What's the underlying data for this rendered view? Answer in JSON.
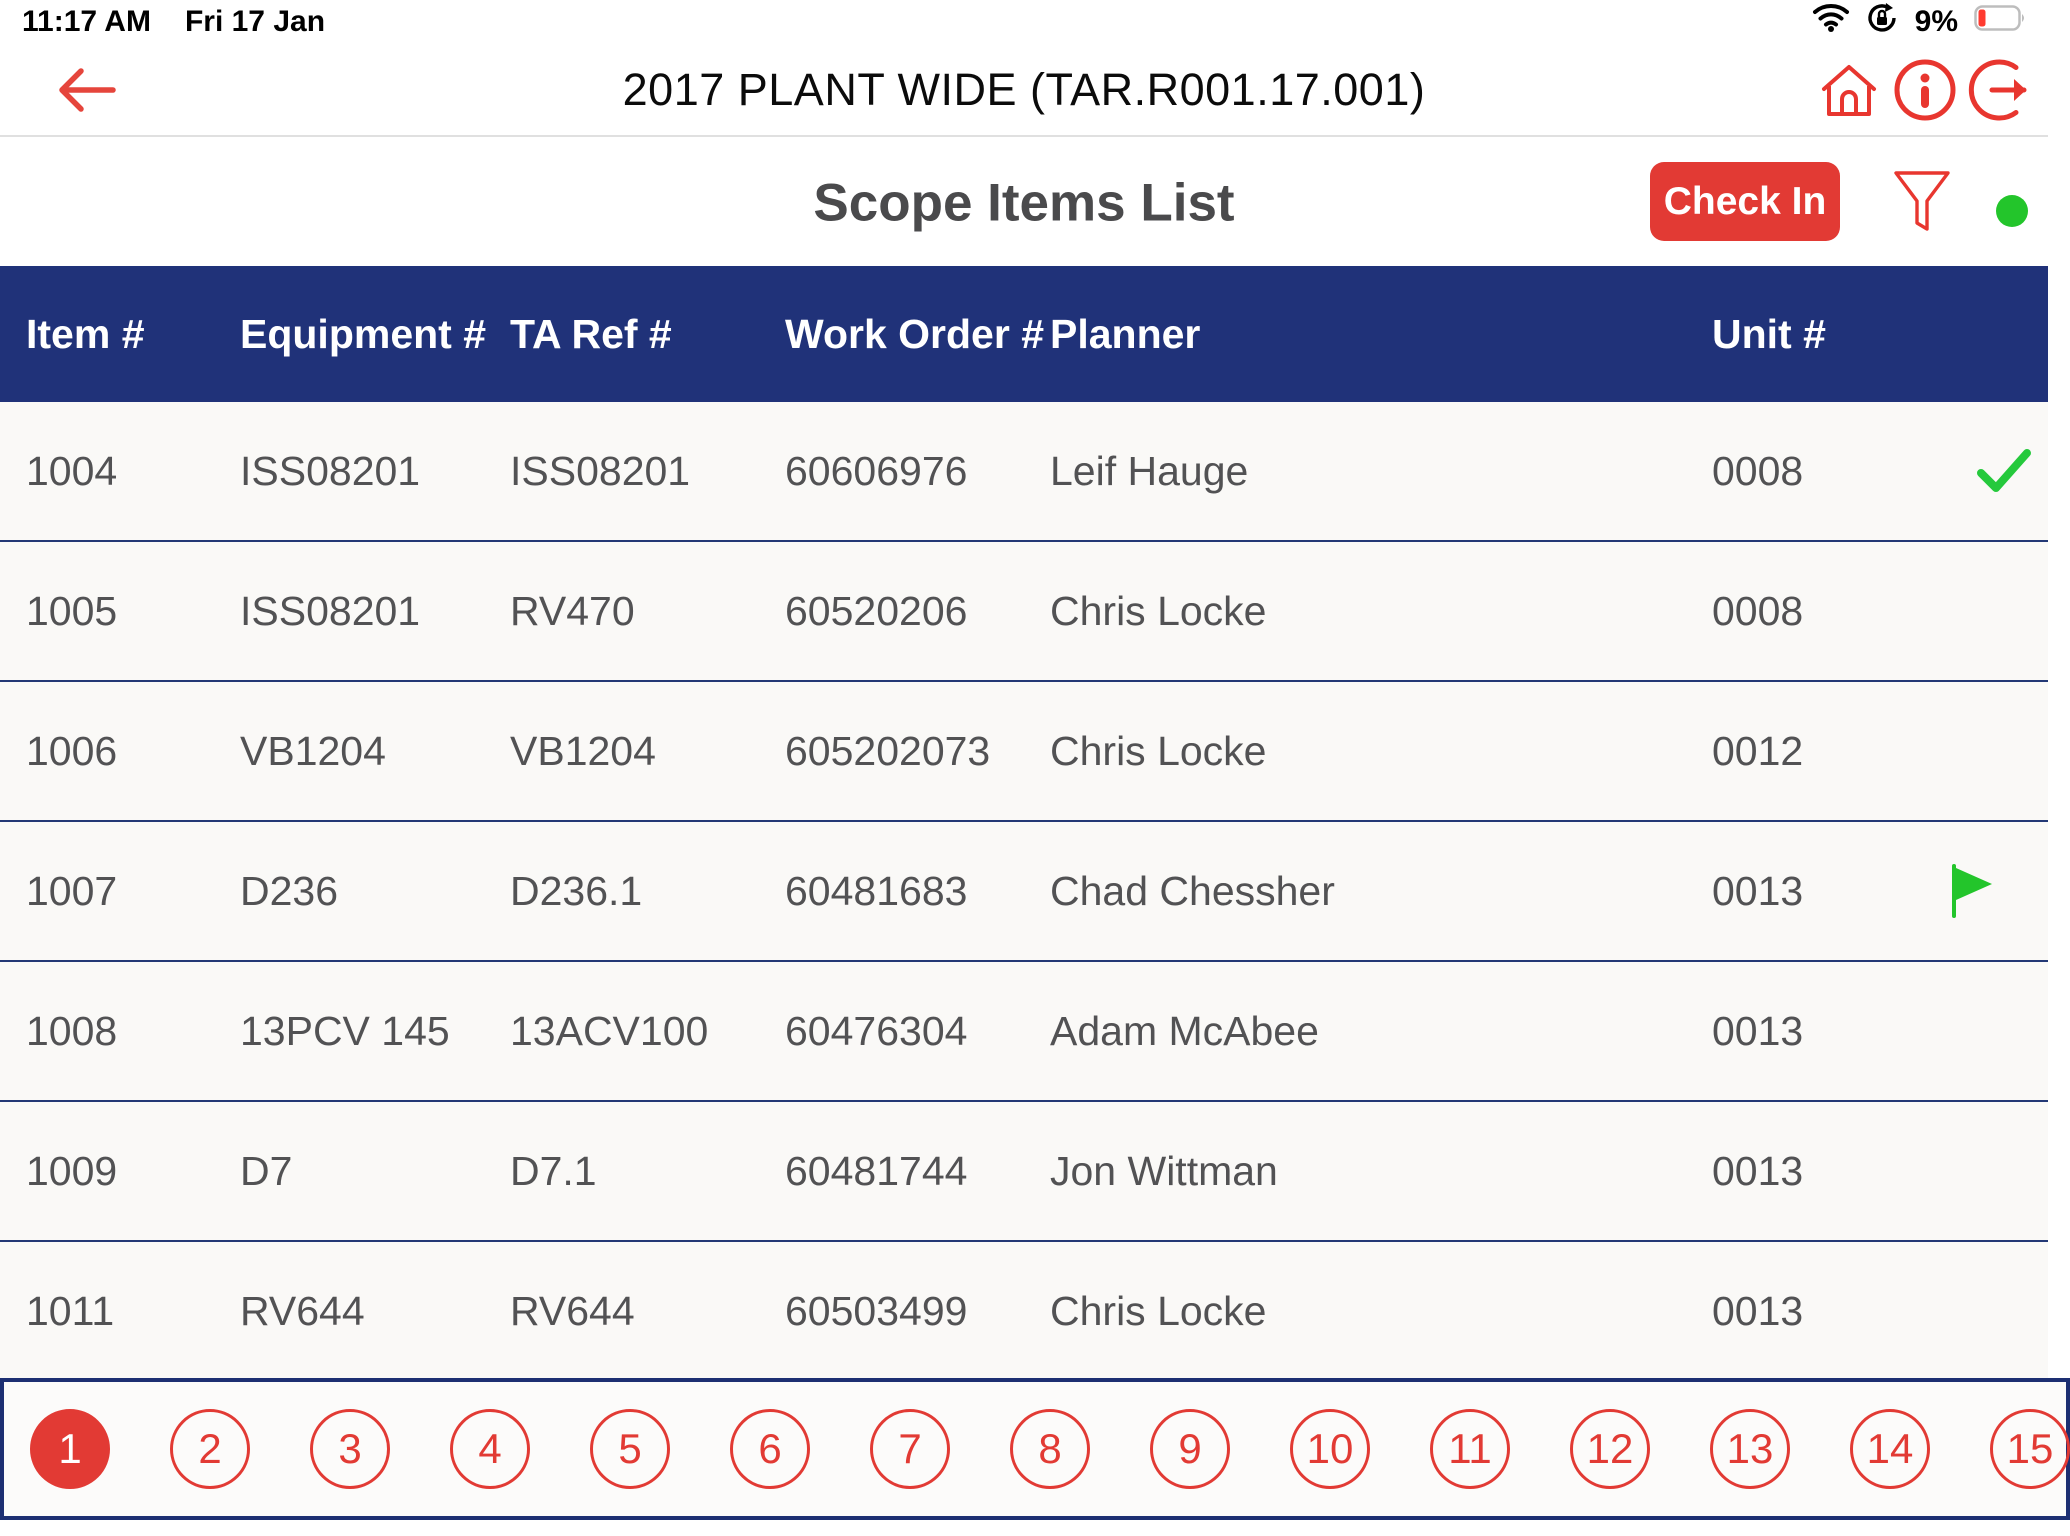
{
  "status_bar": {
    "time": "11:17 AM",
    "date": "Fri 17 Jan",
    "battery_percent": "9%"
  },
  "nav_bar": {
    "title": "2017 PLANT WIDE (TAR.R001.17.001)"
  },
  "toolbar": {
    "title": "Scope Items List",
    "check_in_label": "Check In"
  },
  "table": {
    "columns": [
      "Item #",
      "Equipment #",
      "TA Ref #",
      "Work Order #",
      "Planner",
      "Unit #"
    ],
    "rows": [
      {
        "item": "1004",
        "equipment": "ISS08201",
        "ta_ref": "ISS08201",
        "work_order": "60606976",
        "planner": "Leif Hauge",
        "unit": "0008",
        "status": "checked-in"
      },
      {
        "item": "1005",
        "equipment": "ISS08201",
        "ta_ref": "RV470",
        "work_order": "60520206",
        "planner": "Chris Locke",
        "unit": "0008",
        "status": ""
      },
      {
        "item": "1006",
        "equipment": "VB1204",
        "ta_ref": "VB1204",
        "work_order": "605202073",
        "planner": "Chris Locke",
        "unit": "0012",
        "status": ""
      },
      {
        "item": "1007",
        "equipment": "D236",
        "ta_ref": "D236.1",
        "work_order": "60481683",
        "planner": "Chad Chessher",
        "unit": "0013",
        "status": "flagged"
      },
      {
        "item": "1008",
        "equipment": "13PCV 145",
        "ta_ref": "13ACV100",
        "work_order": "60476304",
        "planner": "Adam McAbee",
        "unit": "0013",
        "status": ""
      },
      {
        "item": "1009",
        "equipment": "D7",
        "ta_ref": "D7.1",
        "work_order": "60481744",
        "planner": "Jon Wittman",
        "unit": "0013",
        "status": ""
      },
      {
        "item": "1011",
        "equipment": "RV644",
        "ta_ref": "RV644",
        "work_order": "60503499",
        "planner": "Chris Locke",
        "unit": "0013",
        "status": ""
      }
    ]
  },
  "pagination": {
    "pages": [
      "1",
      "2",
      "3",
      "4",
      "5",
      "6",
      "7",
      "8",
      "9",
      "10",
      "11",
      "12",
      "13",
      "14",
      "15"
    ],
    "active_page": "1"
  },
  "icons": {
    "back_arrow": "left-arrow",
    "home": "house-outline",
    "info": "circled-i",
    "logout": "circle-exit-arrow",
    "filter": "funnel-outline",
    "sync_status_dot": "green-dot",
    "row_checked_in": "green-checkmark",
    "row_flagged": "green-flag",
    "wifi": "wifi-waves",
    "rotation_lock": "lock-in-circular-arrow",
    "battery": "battery-low-red"
  },
  "colors": {
    "header_navy": "#203279",
    "row_divider_navy": "#233875",
    "accent_red": "#e23a34",
    "icon_red": "#e8362f",
    "success_green": "#23c52b",
    "row_background": "#faf9f7",
    "text_dark_gray": "#525254"
  }
}
